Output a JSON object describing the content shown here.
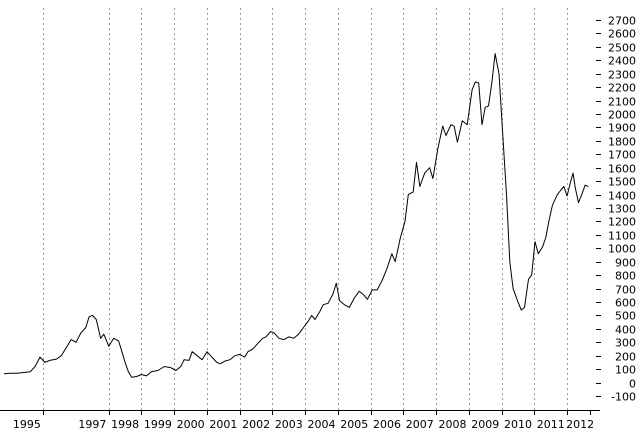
{
  "chart_data": {
    "type": "line",
    "title": "",
    "xlabel": "",
    "ylabel": "",
    "grid": "vertical-dashed",
    "y_axis_position": "right",
    "ylim": [
      -100,
      2700
    ],
    "xlim": [
      1994.6,
      2012.5
    ],
    "y_ticks": [
      "-100",
      "0",
      "100",
      "200",
      "300",
      "400",
      "500",
      "600",
      "700",
      "800",
      "900",
      "1000",
      "1100",
      "1200",
      "1300",
      "1400",
      "1500",
      "1600",
      "1700",
      "1800",
      "1900",
      "2000",
      "2100",
      "2200",
      "2300",
      "2400",
      "2500",
      "2600",
      "2700"
    ],
    "x_ticks": [
      "1995",
      "1997",
      "1998",
      "1999",
      "2000",
      "2001",
      "2002",
      "2003",
      "2004",
      "2005",
      "2006",
      "2007",
      "2008",
      "2009",
      "2010",
      "2011",
      "2012"
    ],
    "series": [
      {
        "color": "#000000",
        "points": [
          [
            1994.6,
            65
          ],
          [
            1994.8,
            70
          ],
          [
            1995.0,
            70
          ],
          [
            1995.2,
            75
          ],
          [
            1995.4,
            80
          ],
          [
            1995.55,
            120
          ],
          [
            1995.7,
            190
          ],
          [
            1995.85,
            150
          ],
          [
            1996.0,
            165
          ],
          [
            1996.2,
            175
          ],
          [
            1996.35,
            200
          ],
          [
            1996.5,
            260
          ],
          [
            1996.65,
            320
          ],
          [
            1996.8,
            300
          ],
          [
            1996.95,
            370
          ],
          [
            1997.1,
            410
          ],
          [
            1997.2,
            490
          ],
          [
            1997.3,
            500
          ],
          [
            1997.42,
            470
          ],
          [
            1997.55,
            330
          ],
          [
            1997.65,
            360
          ],
          [
            1997.8,
            270
          ],
          [
            1997.95,
            330
          ],
          [
            1998.1,
            310
          ],
          [
            1998.2,
            230
          ],
          [
            1998.3,
            150
          ],
          [
            1998.4,
            80
          ],
          [
            1998.5,
            40
          ],
          [
            1998.65,
            45
          ],
          [
            1998.8,
            60
          ],
          [
            1998.95,
            50
          ],
          [
            1999.1,
            80
          ],
          [
            1999.3,
            90
          ],
          [
            1999.5,
            120
          ],
          [
            1999.7,
            110
          ],
          [
            1999.85,
            90
          ],
          [
            2000.0,
            120
          ],
          [
            2000.1,
            170
          ],
          [
            2000.25,
            165
          ],
          [
            2000.35,
            230
          ],
          [
            2000.5,
            200
          ],
          [
            2000.65,
            170
          ],
          [
            2000.8,
            230
          ],
          [
            2000.95,
            190
          ],
          [
            2001.1,
            150
          ],
          [
            2001.2,
            140
          ],
          [
            2001.35,
            160
          ],
          [
            2001.5,
            170
          ],
          [
            2001.65,
            200
          ],
          [
            2001.8,
            210
          ],
          [
            2001.95,
            190
          ],
          [
            2002.05,
            230
          ],
          [
            2002.2,
            250
          ],
          [
            2002.35,
            290
          ],
          [
            2002.5,
            330
          ],
          [
            2002.6,
            340
          ],
          [
            2002.75,
            380
          ],
          [
            2002.85,
            370
          ],
          [
            2003.0,
            330
          ],
          [
            2003.15,
            320
          ],
          [
            2003.3,
            340
          ],
          [
            2003.45,
            330
          ],
          [
            2003.6,
            360
          ],
          [
            2003.75,
            410
          ],
          [
            2003.9,
            460
          ],
          [
            2004.0,
            500
          ],
          [
            2004.1,
            470
          ],
          [
            2004.25,
            530
          ],
          [
            2004.35,
            580
          ],
          [
            2004.5,
            590
          ],
          [
            2004.65,
            660
          ],
          [
            2004.75,
            740
          ],
          [
            2004.85,
            610
          ],
          [
            2005.0,
            580
          ],
          [
            2005.15,
            560
          ],
          [
            2005.3,
            630
          ],
          [
            2005.45,
            680
          ],
          [
            2005.6,
            650
          ],
          [
            2005.7,
            620
          ],
          [
            2005.85,
            690
          ],
          [
            2006.0,
            690
          ],
          [
            2006.15,
            760
          ],
          [
            2006.3,
            850
          ],
          [
            2006.45,
            960
          ],
          [
            2006.55,
            900
          ],
          [
            2006.7,
            1070
          ],
          [
            2006.85,
            1200
          ],
          [
            2006.95,
            1400
          ],
          [
            2007.1,
            1420
          ],
          [
            2007.2,
            1640
          ],
          [
            2007.3,
            1460
          ],
          [
            2007.45,
            1560
          ],
          [
            2007.6,
            1600
          ],
          [
            2007.7,
            1520
          ],
          [
            2007.85,
            1740
          ],
          [
            2008.0,
            1910
          ],
          [
            2008.1,
            1840
          ],
          [
            2008.25,
            1920
          ],
          [
            2008.35,
            1910
          ],
          [
            2008.45,
            1790
          ],
          [
            2008.6,
            1950
          ],
          [
            2008.75,
            1920
          ],
          [
            2008.9,
            2180
          ],
          [
            2009.0,
            2240
          ],
          [
            2009.1,
            2230
          ],
          [
            2009.2,
            1920
          ],
          [
            2009.3,
            2050
          ],
          [
            2009.4,
            2060
          ],
          [
            2009.5,
            2230
          ],
          [
            2009.6,
            2450
          ],
          [
            2009.72,
            2300
          ],
          [
            2009.82,
            1900
          ],
          [
            2009.95,
            1400
          ],
          [
            2010.05,
            900
          ],
          [
            2010.15,
            700
          ],
          [
            2010.3,
            600
          ],
          [
            2010.4,
            540
          ],
          [
            2010.5,
            560
          ],
          [
            2010.62,
            770
          ],
          [
            2010.72,
            800
          ],
          [
            2010.82,
            1050
          ],
          [
            2010.92,
            960
          ],
          [
            2011.05,
            1010
          ],
          [
            2011.15,
            1080
          ],
          [
            2011.25,
            1210
          ],
          [
            2011.35,
            1320
          ],
          [
            2011.5,
            1400
          ],
          [
            2011.6,
            1430
          ],
          [
            2011.7,
            1460
          ],
          [
            2011.8,
            1390
          ],
          [
            2011.88,
            1470
          ],
          [
            2011.98,
            1560
          ],
          [
            2012.05,
            1450
          ],
          [
            2012.15,
            1340
          ],
          [
            2012.25,
            1400
          ],
          [
            2012.35,
            1470
          ],
          [
            2012.45,
            1460
          ]
        ]
      }
    ]
  }
}
